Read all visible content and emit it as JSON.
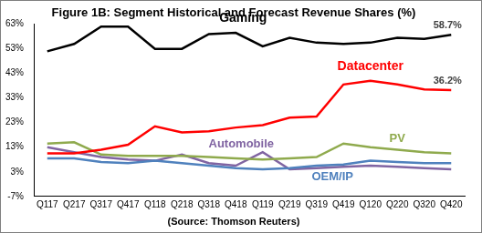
{
  "chart_data": {
    "type": "line",
    "title": "Figure 1B: Segment Historical and Forecast Revenue Shares (%)",
    "subtitle": "(Source: Thomson Reuters)",
    "categories": [
      "Q117",
      "Q217",
      "Q317",
      "Q417",
      "Q118",
      "Q218",
      "Q318",
      "Q418",
      "Q119",
      "Q219",
      "Q319",
      "Q419",
      "Q120",
      "Q220",
      "Q320",
      "Q420"
    ],
    "series": [
      {
        "name": "Gaming",
        "color": "#000000",
        "values": [
          52,
          55,
          62,
          62,
          53,
          53,
          59,
          59.5,
          54,
          57.5,
          55.5,
          55,
          55.5,
          57.5,
          57,
          58.7
        ],
        "value_labels": [
          null,
          null,
          null,
          null,
          null,
          null,
          null,
          null,
          null,
          null,
          null,
          null,
          null,
          null,
          null,
          "58.7%"
        ]
      },
      {
        "name": "Datacenter",
        "color": "#ff0000",
        "values": [
          10.5,
          10.5,
          12,
          14,
          21.5,
          19,
          19.5,
          21,
          22,
          25,
          25.5,
          38.5,
          40,
          38.5,
          36.5,
          36.2
        ],
        "value_labels": [
          null,
          null,
          null,
          null,
          null,
          null,
          null,
          null,
          null,
          null,
          null,
          null,
          null,
          null,
          null,
          "36.2%"
        ]
      },
      {
        "name": "PV",
        "color": "#8faa4d",
        "values": [
          14.5,
          15,
          10,
          9.5,
          9.5,
          9.5,
          9,
          8.5,
          8,
          8.5,
          9,
          14.5,
          13,
          12,
          11,
          10.5
        ]
      },
      {
        "name": "OEM/IP",
        "color": "#4f81bd",
        "values": [
          8.5,
          8.5,
          7,
          6.5,
          7.5,
          6.5,
          5.5,
          4.5,
          4,
          4.5,
          5.5,
          6,
          7.5,
          7,
          6.5,
          6.5
        ]
      },
      {
        "name": "Automobile",
        "color": "#8064a2",
        "values": [
          13,
          11,
          9,
          8,
          7.5,
          10,
          6.5,
          5.5,
          11,
          4,
          4.5,
          5,
          5.5,
          5,
          4.5,
          4
        ]
      }
    ],
    "ylim": [
      -7,
      63
    ],
    "yticks": [
      {
        "value": -7,
        "label": "-7%"
      },
      {
        "value": 3,
        "label": "3%"
      },
      {
        "value": 13,
        "label": "13%"
      },
      {
        "value": 23,
        "label": "23%"
      },
      {
        "value": 33,
        "label": "33%"
      },
      {
        "value": 43,
        "label": "43%"
      },
      {
        "value": 53,
        "label": "53%"
      },
      {
        "value": 63,
        "label": "63%"
      }
    ],
    "grid": false
  }
}
